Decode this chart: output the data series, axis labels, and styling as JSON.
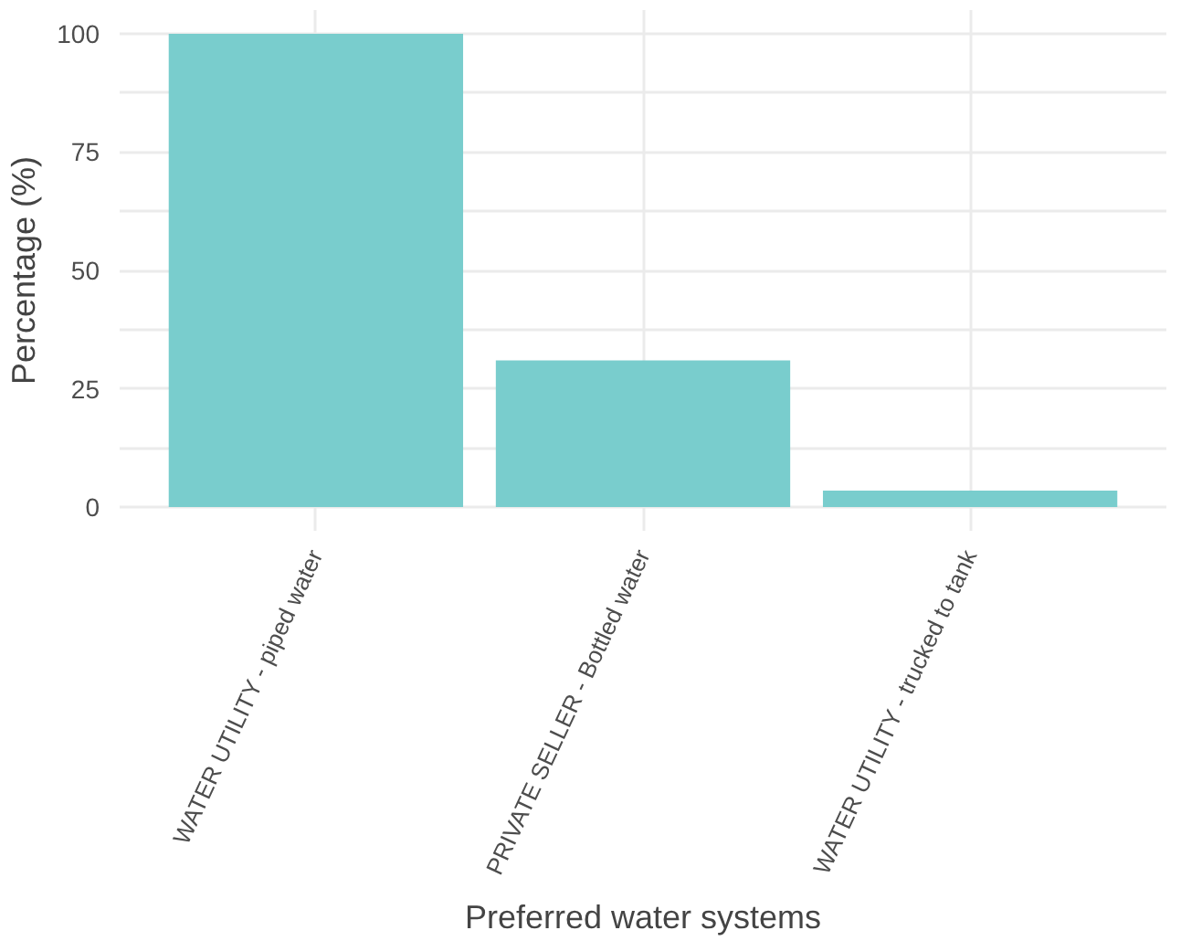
{
  "chart_data": {
    "type": "bar",
    "xlabel": "Preferred water systems",
    "ylabel": "Percentage (%)",
    "categories": [
      "WATER UTILITY - piped water",
      "PRIVATE SELLER - Bottled water",
      "WATER UTILITY - trucked to tank"
    ],
    "values": [
      100,
      31,
      3.5
    ],
    "color": "#79cdcd",
    "ylim": [
      -5,
      105
    ],
    "yticks": [
      0,
      {
        "value": 12.5,
        "label": null
      },
      25,
      {
        "value": 37.5,
        "label": null
      },
      50,
      {
        "value": 62.5,
        "label": null
      },
      75,
      {
        "value": 87.5,
        "label": null
      },
      100
    ],
    "grid": true
  }
}
